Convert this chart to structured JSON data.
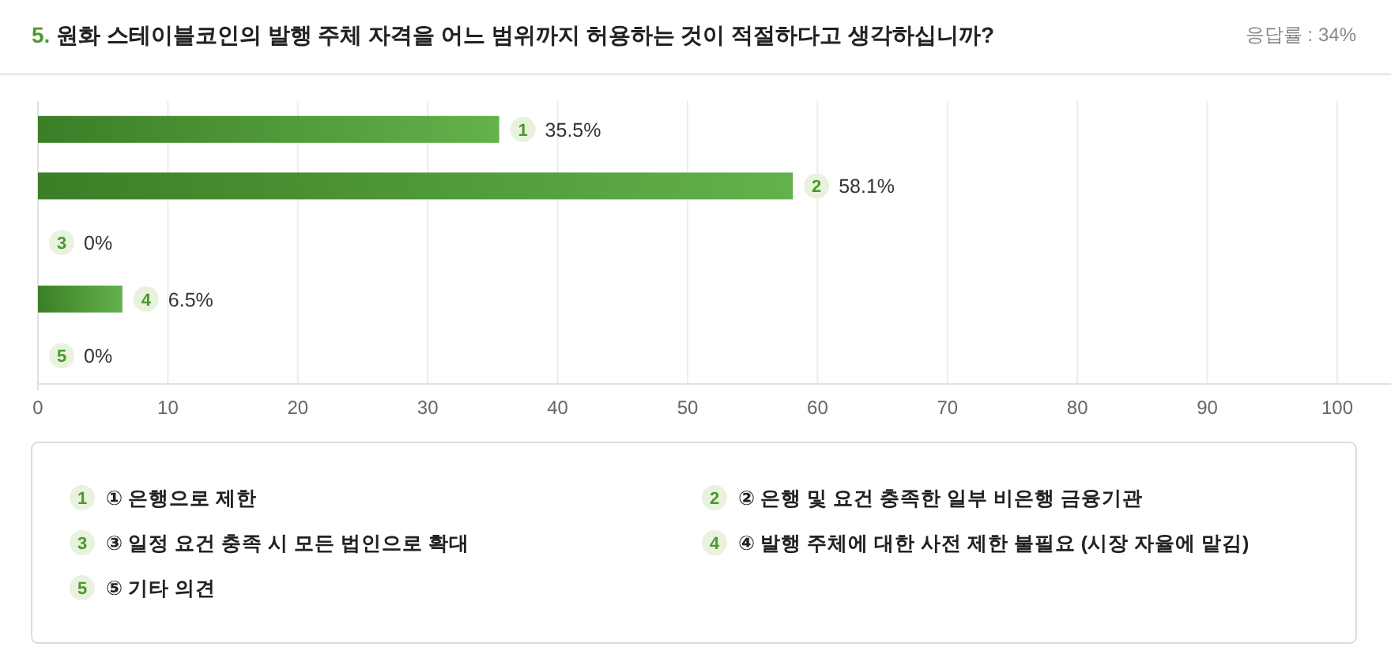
{
  "chart_data": {
    "type": "bar",
    "orientation": "horizontal",
    "title": "5. 원화 스테이블코인의 발행 주체 자격을 어느 범위까지 허용하는 것이 적절하다고 생각하십니까?",
    "subtitle": "응답률 : 34%",
    "categories": [
      "1",
      "2",
      "3",
      "4",
      "5"
    ],
    "values": [
      35.5,
      58.1,
      0,
      6.5,
      0
    ],
    "value_labels": [
      "35.5%",
      "58.1%",
      "0%",
      "6.5%",
      "0%"
    ],
    "color": "#4ea832",
    "xlim": [
      0,
      100
    ],
    "xticks": [
      0,
      10,
      20,
      30,
      40,
      50,
      60,
      70,
      80,
      90,
      100
    ],
    "grid": "x",
    "annotations": [
      "① 은행으로 제한",
      "② 은행 및 요건 충족한 일부 비은행 금융기관",
      "③ 일정 요건 충족 시 모든 법인으로 확대",
      "④ 발행 주체에 대한 사전 제한 불필요 (시장 자율에 맡김)",
      "⑤ 기타 의견"
    ]
  }
}
